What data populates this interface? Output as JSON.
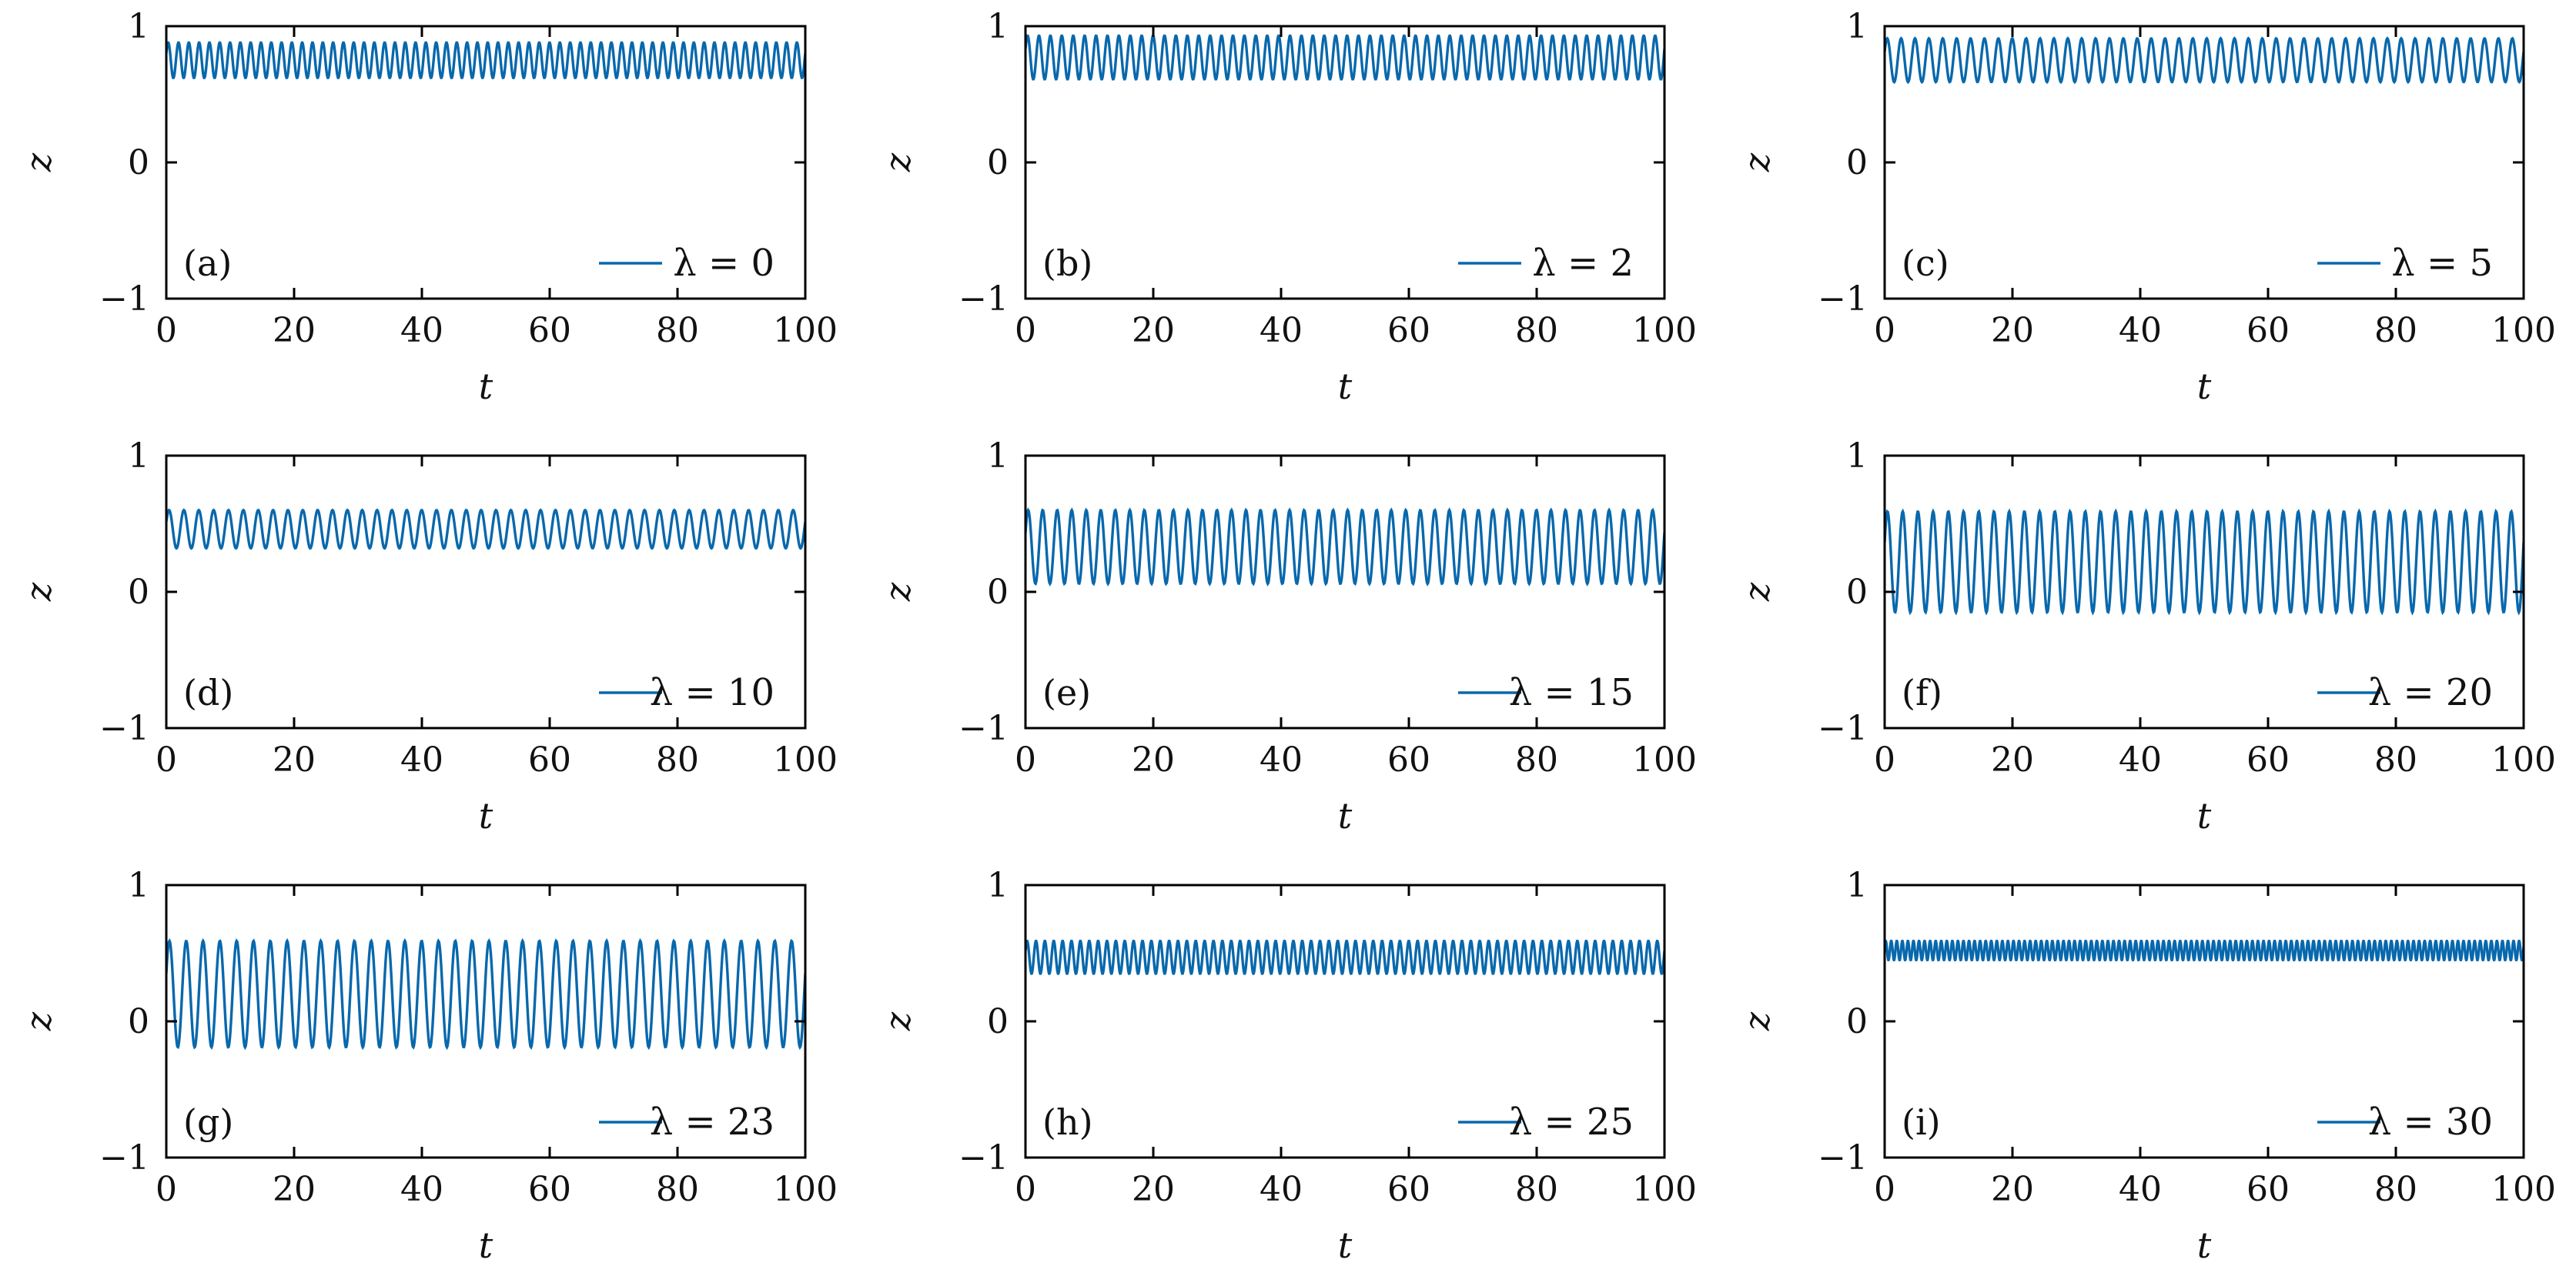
{
  "chart_data": [
    {
      "type": "line",
      "panel_label": "(a)",
      "legend": "λ = 0",
      "xlabel": "t",
      "ylabel": "z",
      "xlim": [
        0,
        100
      ],
      "ylim": [
        -1,
        1
      ],
      "xticks": [
        0,
        20,
        40,
        60,
        80,
        100
      ],
      "yticks": [
        -1,
        0,
        1
      ],
      "grid": false,
      "legend_position": "bottom-right",
      "series": [
        {
          "color": "#0868ac",
          "oscillation": {
            "center": 0.75,
            "amplitude": 0.13,
            "cycles": 62
          }
        }
      ]
    },
    {
      "type": "line",
      "panel_label": "(b)",
      "legend": "λ = 2",
      "xlabel": "t",
      "ylabel": "z",
      "xlim": [
        0,
        100
      ],
      "ylim": [
        -1,
        1
      ],
      "xticks": [
        0,
        20,
        40,
        60,
        80,
        100
      ],
      "yticks": [
        -1,
        0,
        1
      ],
      "grid": false,
      "legend_position": "bottom-right",
      "series": [
        {
          "color": "#0868ac",
          "oscillation": {
            "center": 0.77,
            "amplitude": 0.16,
            "cycles": 56
          }
        }
      ]
    },
    {
      "type": "line",
      "panel_label": "(c)",
      "legend": "λ = 5",
      "xlabel": "t",
      "ylabel": "z",
      "xlim": [
        0,
        100
      ],
      "ylim": [
        -1,
        1
      ],
      "xticks": [
        0,
        20,
        40,
        60,
        80,
        100
      ],
      "yticks": [
        -1,
        0,
        1
      ],
      "grid": false,
      "legend_position": "bottom-right",
      "series": [
        {
          "color": "#0868ac",
          "oscillation": {
            "center": 0.75,
            "amplitude": 0.16,
            "cycles": 46
          }
        }
      ]
    },
    {
      "type": "line",
      "panel_label": "(d)",
      "legend": "λ = 10",
      "xlabel": "t",
      "ylabel": "z",
      "xlim": [
        0,
        100
      ],
      "ylim": [
        -1,
        1
      ],
      "xticks": [
        0,
        20,
        40,
        60,
        80,
        100
      ],
      "yticks": [
        -1,
        0,
        1
      ],
      "grid": false,
      "legend_position": "bottom-right",
      "series": [
        {
          "color": "#0868ac",
          "oscillation": {
            "center": 0.46,
            "amplitude": 0.14,
            "cycles": 43
          }
        }
      ]
    },
    {
      "type": "line",
      "panel_label": "(e)",
      "legend": "λ = 15",
      "xlabel": "t",
      "ylabel": "z",
      "xlim": [
        0,
        100
      ],
      "ylim": [
        -1,
        1
      ],
      "xticks": [
        0,
        20,
        40,
        60,
        80,
        100
      ],
      "yticks": [
        -1,
        0,
        1
      ],
      "grid": false,
      "legend_position": "bottom-right",
      "series": [
        {
          "color": "#0868ac",
          "oscillation": {
            "center": 0.33,
            "amplitude": 0.27,
            "cycles": 44
          }
        }
      ]
    },
    {
      "type": "line",
      "panel_label": "(f)",
      "legend": "λ = 20",
      "xlabel": "t",
      "ylabel": "z",
      "xlim": [
        0,
        100
      ],
      "ylim": [
        -1,
        1
      ],
      "xticks": [
        0,
        20,
        40,
        60,
        80,
        100
      ],
      "yticks": [
        -1,
        0,
        1
      ],
      "grid": false,
      "legend_position": "bottom-right",
      "series": [
        {
          "color": "#0868ac",
          "oscillation": {
            "center": 0.22,
            "amplitude": 0.37,
            "cycles": 42
          }
        }
      ]
    },
    {
      "type": "line",
      "panel_label": "(g)",
      "legend": "λ = 23",
      "xlabel": "t",
      "ylabel": "z",
      "xlim": [
        0,
        100
      ],
      "ylim": [
        -1,
        1
      ],
      "xticks": [
        0,
        20,
        40,
        60,
        80,
        100
      ],
      "yticks": [
        -1,
        0,
        1
      ],
      "grid": false,
      "legend_position": "bottom-right",
      "series": [
        {
          "color": "#0868ac",
          "oscillation": {
            "center": 0.2,
            "amplitude": 0.39,
            "cycles": 38
          }
        }
      ]
    },
    {
      "type": "line",
      "panel_label": "(h)",
      "legend": "λ = 25",
      "xlabel": "t",
      "ylabel": "z",
      "xlim": [
        0,
        100
      ],
      "ylim": [
        -1,
        1
      ],
      "xticks": [
        0,
        20,
        40,
        60,
        80,
        100
      ],
      "yticks": [
        -1,
        0,
        1
      ],
      "grid": false,
      "legend_position": "bottom-right",
      "series": [
        {
          "color": "#0868ac",
          "oscillation": {
            "center": 0.47,
            "amplitude": 0.12,
            "cycles": 72
          }
        }
      ]
    },
    {
      "type": "line",
      "panel_label": "(i)",
      "legend": "λ = 30",
      "xlabel": "t",
      "ylabel": "z",
      "xlim": [
        0,
        100
      ],
      "ylim": [
        -1,
        1
      ],
      "xticks": [
        0,
        20,
        40,
        60,
        80,
        100
      ],
      "yticks": [
        -1,
        0,
        1
      ],
      "grid": false,
      "legend_position": "bottom-right",
      "series": [
        {
          "color": "#0868ac",
          "oscillation": {
            "center": 0.52,
            "amplitude": 0.07,
            "cycles": 115
          }
        }
      ]
    }
  ]
}
